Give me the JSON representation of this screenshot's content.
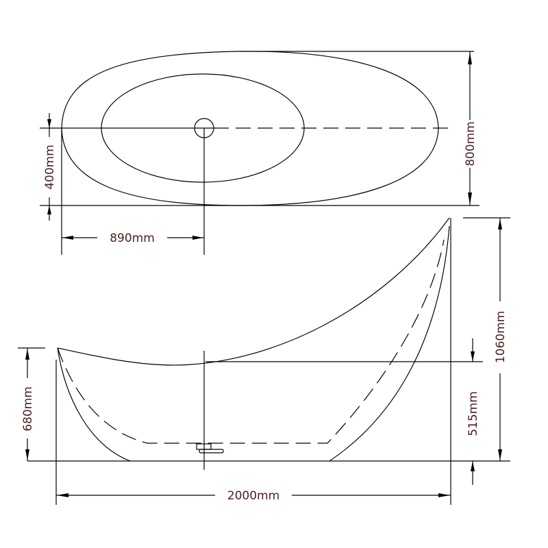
{
  "top_view": {
    "width_dim": "800mm",
    "drain_offset_dim": "400mm",
    "drain_position_dim": "890mm"
  },
  "side_view": {
    "low_end_height_dim": "680mm",
    "high_end_height_dim": "1060mm",
    "rim_height_dim": "515mm",
    "length_dim": "2000mm"
  },
  "colors": {
    "line": "#000000",
    "dimension_text": "#4a1e1e"
  }
}
